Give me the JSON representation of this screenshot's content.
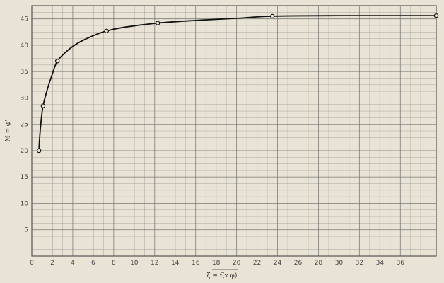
{
  "chart_data": {
    "type": "line",
    "title": "",
    "xlabel": "ζ = f(x φ)",
    "ylabel": "M = φ'",
    "xlim": [
      0,
      39.5
    ],
    "ylim": [
      0,
      47.5
    ],
    "x_ticks": [
      0,
      2,
      4,
      6,
      8,
      10,
      12,
      14,
      16,
      18,
      20,
      22,
      24,
      26,
      28,
      30,
      32,
      34,
      36
    ],
    "x_tick_labels": [
      "0",
      "2",
      "4",
      "6",
      "8",
      "10",
      "12",
      "14",
      "16",
      "18",
      "20",
      "22",
      "24",
      "26",
      "28",
      "30",
      "32",
      "34",
      "36"
    ],
    "y_ticks": [
      5,
      10,
      15,
      20,
      25,
      30,
      35,
      40,
      45
    ],
    "y_tick_labels": [
      "5",
      "10",
      "15",
      "20",
      "25",
      "30",
      "35",
      "40",
      "45"
    ],
    "grid": true,
    "series": [
      {
        "points": [
          {
            "x": 0.7,
            "y": 20.0
          },
          {
            "x": 1.1,
            "y": 28.5
          },
          {
            "x": 2.5,
            "y": 37.0
          },
          {
            "x": 7.3,
            "y": 42.7
          },
          {
            "x": 12.3,
            "y": 44.2
          },
          {
            "x": 23.5,
            "y": 45.5
          },
          {
            "x": 39.5,
            "y": 45.6
          }
        ],
        "curve": [
          {
            "x": 0.7,
            "y": 20.0
          },
          {
            "x": 0.75,
            "y": 22.0
          },
          {
            "x": 0.9,
            "y": 25.5
          },
          {
            "x": 1.1,
            "y": 28.5
          },
          {
            "x": 1.5,
            "y": 31.5
          },
          {
            "x": 2.0,
            "y": 34.5
          },
          {
            "x": 2.5,
            "y": 37.0
          },
          {
            "x": 3.5,
            "y": 39.0
          },
          {
            "x": 4.5,
            "y": 40.4
          },
          {
            "x": 6.0,
            "y": 41.8
          },
          {
            "x": 7.3,
            "y": 42.7
          },
          {
            "x": 9.0,
            "y": 43.4
          },
          {
            "x": 12.3,
            "y": 44.2
          },
          {
            "x": 16.0,
            "y": 44.7
          },
          {
            "x": 20.0,
            "y": 45.1
          },
          {
            "x": 23.5,
            "y": 45.5
          },
          {
            "x": 30.0,
            "y": 45.6
          },
          {
            "x": 39.5,
            "y": 45.6
          }
        ]
      }
    ]
  },
  "style": {
    "paper": "#e8e3d4",
    "grid_color": "#6b6b6b",
    "curve_color": "#111111"
  }
}
